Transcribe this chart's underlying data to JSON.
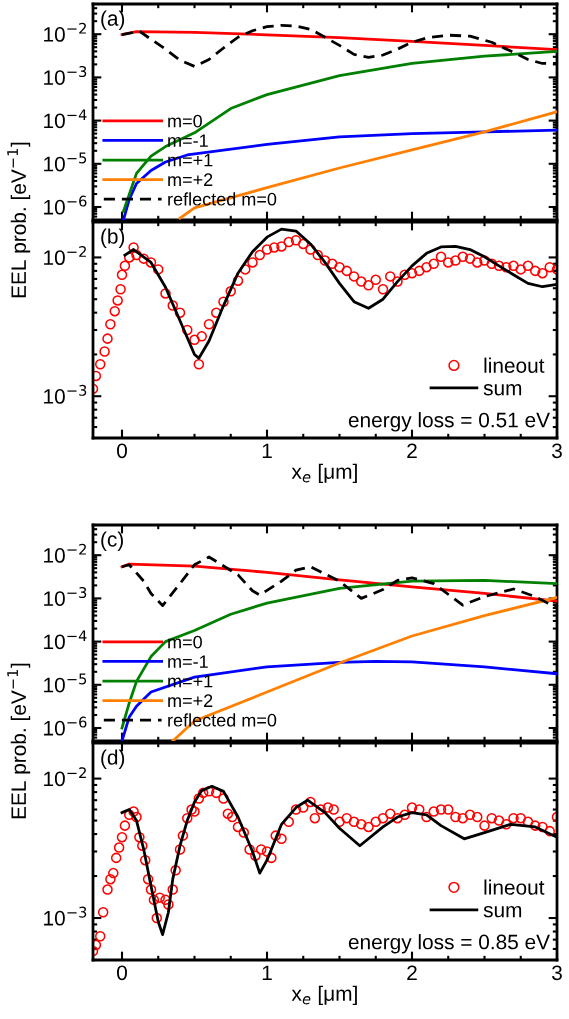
{
  "chart_data": [
    {
      "type": "line",
      "annotations": [
        "(a)"
      ],
      "ylabel": "EEL prob. [eV$^{−1}$]",
      "log": "y",
      "xlim": [
        -0.2,
        3
      ],
      "xticks": [
        0,
        1,
        2,
        3
      ],
      "ylim": [
        5e-07,
        0.05
      ],
      "yticks": [
        {
          "value": 1e-06,
          "label": "10$^{−6}$"
        },
        {
          "value": 1e-05,
          "label": "10$^{−5}$"
        },
        {
          "value": 0.0001,
          "label": "10$^{−4}$"
        },
        {
          "value": 0.001,
          "label": "10$^{−3}$"
        },
        {
          "value": 0.01,
          "label": "10$^{−2}$"
        }
      ],
      "tick_labels": "y",
      "grid": false,
      "legend": "bottom left",
      "series": [
        {
          "name": "m=0",
          "color": "#ff0000",
          "marker": "none",
          "line_style": "solid",
          "x": [
            0,
            0.1,
            0.5,
            1,
            1.5,
            2,
            2.5,
            3
          ],
          "values": [
            0.0098,
            0.0115,
            0.011,
            0.0097,
            0.0083,
            0.0068,
            0.0055,
            0.0044
          ]
        },
        {
          "name": "m=-1",
          "color": "#0000ff",
          "marker": "none",
          "line_style": "solid",
          "x": [
            0.01,
            0.05,
            0.1,
            0.2,
            0.3,
            0.45,
            1,
            1.5,
            2,
            2.5,
            3
          ],
          "values": [
            5e-07,
            1.5e-06,
            3.5e-06,
            7e-06,
            1.1e-05,
            1.6e-05,
            2.8e-05,
            4.2e-05,
            5e-05,
            5.5e-05,
            6e-05
          ]
        },
        {
          "name": "m=+1",
          "color": "#008000",
          "marker": "none",
          "line_style": "solid",
          "x": [
            0.01,
            0.1,
            0.2,
            0.3,
            0.5,
            0.75,
            1,
            1.5,
            2,
            2.5,
            3
          ],
          "values": [
            8e-07,
            6e-06,
            1.5e-05,
            2.5e-05,
            5.2e-05,
            0.00019,
            0.0004,
            0.0011,
            0.0021,
            0.0031,
            0.004
          ]
        },
        {
          "name": "m=+2",
          "color": "#ff8000",
          "marker": "none",
          "line_style": "solid",
          "x": [
            0.4,
            0.5,
            1,
            1.5,
            2,
            2.5,
            3
          ],
          "values": [
            5.5e-07,
            9.5e-07,
            2.8e-06,
            8e-06,
            2.1e-05,
            5.5e-05,
            0.00016
          ]
        },
        {
          "name": "reflected m=0",
          "color": "#000000",
          "marker": "none",
          "line_style": "dashed",
          "x": [
            0,
            0.12,
            0.3,
            0.4,
            0.5,
            0.6,
            0.7,
            0.8,
            0.9,
            1.0,
            1.1,
            1.2,
            1.3,
            1.4,
            1.5,
            1.6,
            1.7,
            1.8,
            1.9,
            2.0,
            2.1,
            2.25,
            2.4,
            2.55,
            2.7,
            2.8,
            2.9,
            3.0
          ],
          "values": [
            0.0098,
            0.0117,
            0.0045,
            0.0025,
            0.0018,
            0.0026,
            0.0048,
            0.0085,
            0.012,
            0.015,
            0.016,
            0.0155,
            0.013,
            0.0085,
            0.0055,
            0.0034,
            0.0029,
            0.0033,
            0.0045,
            0.0065,
            0.0082,
            0.0095,
            0.009,
            0.0065,
            0.0038,
            0.0026,
            0.0021,
            0.0021
          ]
        }
      ]
    },
    {
      "type": "line",
      "annotations": [
        "(b)",
        "energy loss = 0.51 eV"
      ],
      "xlabel": "x$_{e}$ [μm]",
      "log": "y",
      "xlim": [
        -0.2,
        3
      ],
      "xticks": [
        0,
        1,
        2,
        3
      ],
      "ylim": [
        0.0005,
        0.018
      ],
      "yticks": [
        {
          "value": 0.001,
          "label": "10$^{−3}$"
        },
        {
          "value": 0.01,
          "label": "10$^{−2}$"
        }
      ],
      "grid": false,
      "legend": "bottom right",
      "series": [
        {
          "name": "lineout",
          "type": "scatter",
          "color": "#ff0000",
          "marker": "circle",
          "x": [
            -0.2,
            -0.18,
            -0.15,
            -0.12,
            -0.1,
            -0.08,
            -0.05,
            -0.03,
            -0.01,
            0.0,
            0.02,
            0.05,
            0.08,
            0.1,
            0.15,
            0.2,
            0.25,
            0.3,
            0.35,
            0.4,
            0.45,
            0.5,
            0.53,
            0.55,
            0.6,
            0.65,
            0.7,
            0.75,
            0.8,
            0.85,
            0.9,
            0.95,
            1.0,
            1.05,
            1.1,
            1.15,
            1.2,
            1.25,
            1.3,
            1.35,
            1.4,
            1.45,
            1.5,
            1.55,
            1.6,
            1.65,
            1.7,
            1.75,
            1.8,
            1.85,
            1.9,
            1.95,
            2.0,
            2.05,
            2.1,
            2.15,
            2.2,
            2.25,
            2.3,
            2.35,
            2.4,
            2.45,
            2.5,
            2.55,
            2.6,
            2.65,
            2.7,
            2.75,
            2.8,
            2.85,
            2.9,
            2.95,
            3.0
          ],
          "values": [
            0.00113,
            0.0014,
            0.0017,
            0.0021,
            0.0026,
            0.0033,
            0.0041,
            0.0049,
            0.0059,
            0.0075,
            0.0087,
            0.01,
            0.0118,
            0.0104,
            0.0098,
            0.0092,
            0.0082,
            0.0055,
            0.0045,
            0.004,
            0.003,
            0.00255,
            0.0017,
            0.0027,
            0.0033,
            0.004,
            0.0048,
            0.0057,
            0.0068,
            0.0082,
            0.0092,
            0.0104,
            0.0114,
            0.0118,
            0.012,
            0.0129,
            0.0133,
            0.0125,
            0.0114,
            0.0104,
            0.0095,
            0.009,
            0.0085,
            0.008,
            0.0073,
            0.0067,
            0.0063,
            0.0069,
            0.0059,
            0.0073,
            0.0067,
            0.0075,
            0.0077,
            0.008,
            0.0085,
            0.009,
            0.0101,
            0.0092,
            0.0095,
            0.0101,
            0.0098,
            0.0092,
            0.0095,
            0.009,
            0.0087,
            0.0085,
            0.0087,
            0.0082,
            0.0087,
            0.008,
            0.0077,
            0.0085,
            0.0082
          ]
        },
        {
          "name": "sum",
          "color": "#000000",
          "marker": "none",
          "line_style": "solid",
          "x": [
            0.02,
            0.08,
            0.2,
            0.3,
            0.4,
            0.5,
            0.53,
            0.6,
            0.7,
            0.8,
            0.9,
            1.0,
            1.1,
            1.2,
            1.3,
            1.4,
            1.5,
            1.6,
            1.7,
            1.8,
            1.9,
            2.0,
            2.1,
            2.2,
            2.3,
            2.4,
            2.5,
            2.6,
            2.7,
            2.8,
            2.9,
            3.0
          ],
          "values": [
            0.0104,
            0.0114,
            0.0092,
            0.0061,
            0.0035,
            0.002,
            0.00188,
            0.0025,
            0.0045,
            0.0077,
            0.011,
            0.014,
            0.016,
            0.0155,
            0.0125,
            0.0092,
            0.0065,
            0.0048,
            0.0043,
            0.005,
            0.0067,
            0.0087,
            0.0107,
            0.0119,
            0.012,
            0.0114,
            0.0101,
            0.0087,
            0.0075,
            0.0065,
            0.00615,
            0.0064
          ]
        }
      ]
    },
    {
      "type": "line",
      "annotations": [
        "(c)"
      ],
      "ylabel": "EEL prob. [eV$^{−1}$]",
      "log": "y",
      "xlim": [
        -0.2,
        3
      ],
      "xticks": [
        0,
        1,
        2,
        3
      ],
      "ylim": [
        5e-07,
        0.05
      ],
      "yticks": [
        {
          "value": 1e-06,
          "label": "10$^{−6}$"
        },
        {
          "value": 1e-05,
          "label": "10$^{−5}$"
        },
        {
          "value": 0.0001,
          "label": "10$^{−4}$"
        },
        {
          "value": 0.001,
          "label": "10$^{−3}$"
        },
        {
          "value": 0.01,
          "label": "10$^{−2}$"
        }
      ],
      "tick_labels": "y",
      "grid": false,
      "legend": "bottom left",
      "series": [
        {
          "name": "m=0",
          "color": "#ff0000",
          "marker": "none",
          "line_style": "solid",
          "x": [
            0,
            0.05,
            0.5,
            1,
            1.5,
            2,
            2.5,
            3
          ],
          "values": [
            0.0054,
            0.0062,
            0.0056,
            0.004,
            0.0027,
            0.00185,
            0.0013,
            0.00086
          ]
        },
        {
          "name": "m=-1",
          "color": "#0000ff",
          "marker": "none",
          "line_style": "solid",
          "x": [
            0,
            0.05,
            0.1,
            0.2,
            0.5,
            1,
            1.5,
            1.75,
            2,
            2.5,
            3
          ],
          "values": [
            5e-07,
            1.8e-06,
            3.2e-06,
            6.8e-06,
            1.5e-05,
            2.6e-05,
            3.3e-05,
            3.5e-05,
            3.4e-05,
            2.6e-05,
            1.8e-05
          ]
        },
        {
          "name": "m=+1",
          "color": "#008000",
          "marker": "none",
          "line_style": "solid",
          "x": [
            0,
            0.05,
            0.1,
            0.2,
            0.3,
            0.5,
            0.75,
            1,
            1.5,
            2,
            2.5,
            3
          ],
          "values": [
            1e-06,
            3.8e-06,
            1.2e-05,
            4.5e-05,
            0.0001,
            0.00018,
            0.00043,
            0.00078,
            0.0017,
            0.0025,
            0.0026,
            0.0022
          ]
        },
        {
          "name": "m=+2",
          "color": "#ff8000",
          "marker": "none",
          "line_style": "solid",
          "x": [
            0.35,
            0.5,
            1,
            1.5,
            2,
            2.5,
            3
          ],
          "values": [
            5e-07,
            1.45e-06,
            6.8e-06,
            3.2e-05,
            0.000135,
            0.0004,
            0.00105
          ]
        },
        {
          "name": "reflected m=0",
          "color": "#000000",
          "marker": "none",
          "line_style": "dashed",
          "x": [
            0,
            0.05,
            0.15,
            0.2,
            0.28,
            0.4,
            0.5,
            0.6,
            0.8,
            0.9,
            0.95,
            1.1,
            1.2,
            1.3,
            1.5,
            1.65,
            1.8,
            1.9,
            2.0,
            2.15,
            2.35,
            2.5,
            2.7,
            2.85,
            3.0
          ],
          "values": [
            0.0054,
            0.006,
            0.0025,
            0.0013,
            0.00068,
            0.0022,
            0.006,
            0.0091,
            0.0035,
            0.0015,
            0.0012,
            0.0025,
            0.0045,
            0.0054,
            0.0025,
            0.001,
            0.0016,
            0.0026,
            0.003,
            0.0022,
            0.0007,
            0.0011,
            0.00165,
            0.0011,
            0.0006
          ]
        }
      ]
    },
    {
      "type": "line",
      "annotations": [
        "(d)",
        "energy loss = 0.85 eV"
      ],
      "xlabel": "x$_{e}$ [μm]",
      "log": "y",
      "xlim": [
        -0.2,
        3
      ],
      "xticks": [
        0,
        1,
        2,
        3
      ],
      "ylim": [
        0.0005,
        0.018
      ],
      "yticks": [
        {
          "value": 0.001,
          "label": "10$^{−3}$"
        },
        {
          "value": 0.01,
          "label": "10$^{−2}$"
        }
      ],
      "grid": false,
      "legend": "bottom right",
      "series": [
        {
          "name": "lineout",
          "type": "scatter",
          "color": "#ff0000",
          "marker": "circle",
          "x": [
            -0.2,
            -0.18,
            -0.15,
            -0.13,
            -0.1,
            -0.08,
            -0.06,
            -0.04,
            -0.02,
            0.0,
            0.02,
            0.05,
            0.08,
            0.1,
            0.12,
            0.14,
            0.16,
            0.18,
            0.2,
            0.22,
            0.24,
            0.26,
            0.3,
            0.32,
            0.35,
            0.37,
            0.4,
            0.42,
            0.45,
            0.48,
            0.5,
            0.53,
            0.56,
            0.6,
            0.65,
            0.7,
            0.73,
            0.76,
            0.8,
            0.84,
            0.88,
            0.92,
            0.96,
            1.0,
            1.03,
            1.06,
            1.1,
            1.15,
            1.2,
            1.25,
            1.3,
            1.33,
            1.37,
            1.42,
            1.46,
            1.5,
            1.55,
            1.6,
            1.65,
            1.7,
            1.75,
            1.8,
            1.85,
            1.9,
            1.95,
            2.0,
            2.05,
            2.1,
            2.15,
            2.2,
            2.25,
            2.3,
            2.35,
            2.4,
            2.45,
            2.5,
            2.55,
            2.6,
            2.65,
            2.7,
            2.75,
            2.8,
            2.85,
            2.9,
            2.95,
            3.0
          ],
          "values": [
            0.00058,
            0.00064,
            0.00074,
            0.0011,
            0.0016,
            0.0019,
            0.0021,
            0.0027,
            0.0032,
            0.0038,
            0.0046,
            0.0055,
            0.0058,
            0.0053,
            0.0038,
            0.0033,
            0.0026,
            0.0019,
            0.0016,
            0.00135,
            0.001,
            0.0014,
            0.00135,
            0.00125,
            0.0016,
            0.0022,
            0.0031,
            0.0039,
            0.0052,
            0.006,
            0.0058,
            0.0072,
            0.0079,
            0.0081,
            0.0079,
            0.0072,
            0.0056,
            0.0053,
            0.0045,
            0.0041,
            0.0031,
            0.0028,
            0.0031,
            0.003,
            0.0027,
            0.0039,
            0.0037,
            0.0049,
            0.006,
            0.0062,
            0.0068,
            0.0052,
            0.006,
            0.0062,
            0.006,
            0.0049,
            0.0052,
            0.0049,
            0.0047,
            0.0045,
            0.0049,
            0.0052,
            0.0056,
            0.0052,
            0.0055,
            0.0062,
            0.006,
            0.0053,
            0.0058,
            0.006,
            0.006,
            0.0053,
            0.0052,
            0.0055,
            0.0053,
            0.0046,
            0.0052,
            0.005,
            0.0047,
            0.0052,
            0.0052,
            0.0049,
            0.0046,
            0.0045,
            0.0042,
            0.0053
          ]
        },
        {
          "name": "sum",
          "color": "#000000",
          "marker": "none",
          "line_style": "solid",
          "x": [
            0,
            0.05,
            0.1,
            0.15,
            0.2,
            0.25,
            0.28,
            0.32,
            0.35,
            0.4,
            0.45,
            0.5,
            0.55,
            0.62,
            0.7,
            0.8,
            0.9,
            0.95,
            1.0,
            1.1,
            1.2,
            1.28,
            1.4,
            1.5,
            1.64,
            1.8,
            1.9,
            2.0,
            2.1,
            2.2,
            2.36,
            2.5,
            2.68,
            2.85,
            3.0
          ],
          "values": [
            0.0057,
            0.006,
            0.005,
            0.0031,
            0.0017,
            0.00094,
            0.00076,
            0.0011,
            0.0019,
            0.0033,
            0.005,
            0.0068,
            0.0082,
            0.0088,
            0.0081,
            0.0053,
            0.003,
            0.0021,
            0.0026,
            0.0047,
            0.0062,
            0.007,
            0.0057,
            0.0044,
            0.0033,
            0.0045,
            0.0053,
            0.0057,
            0.0055,
            0.0046,
            0.0037,
            0.0041,
            0.0047,
            0.0045,
            0.0038
          ]
        }
      ]
    }
  ]
}
